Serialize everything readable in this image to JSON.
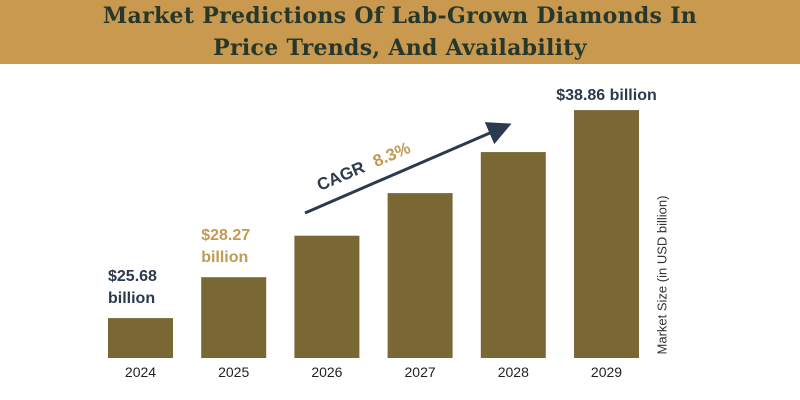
{
  "header": {
    "title_line1": "Market Predictions Of Lab-Grown Diamonds In",
    "title_line2": "Price Trends, And Availability"
  },
  "colors": {
    "header_bg": "#c8994f",
    "bar": "#7a6834",
    "label_dark": "#2b3a4e",
    "label_gold": "#c39a52"
  },
  "chart_data": {
    "type": "bar",
    "categories": [
      "2024",
      "2025",
      "2026",
      "2027",
      "2028",
      "2029"
    ],
    "values": [
      25.68,
      28.27,
      30.9,
      33.6,
      36.2,
      38.86
    ],
    "ylabel": "Market Size (in USD billion)",
    "ylim": [
      23.15,
      39.5
    ],
    "grid": false,
    "data_labels": [
      {
        "index": 0,
        "line1": "$25.68",
        "line2": "billion",
        "color": "#2b3a4e"
      },
      {
        "index": 1,
        "line1": "$28.27",
        "line2": "billion",
        "color": "#c39a52"
      },
      {
        "index": 5,
        "line1": "$38.86 billion",
        "line2": "",
        "color": "#2b3a4e"
      }
    ],
    "annotation": {
      "label": "CAGR",
      "value": "8.3%"
    }
  }
}
